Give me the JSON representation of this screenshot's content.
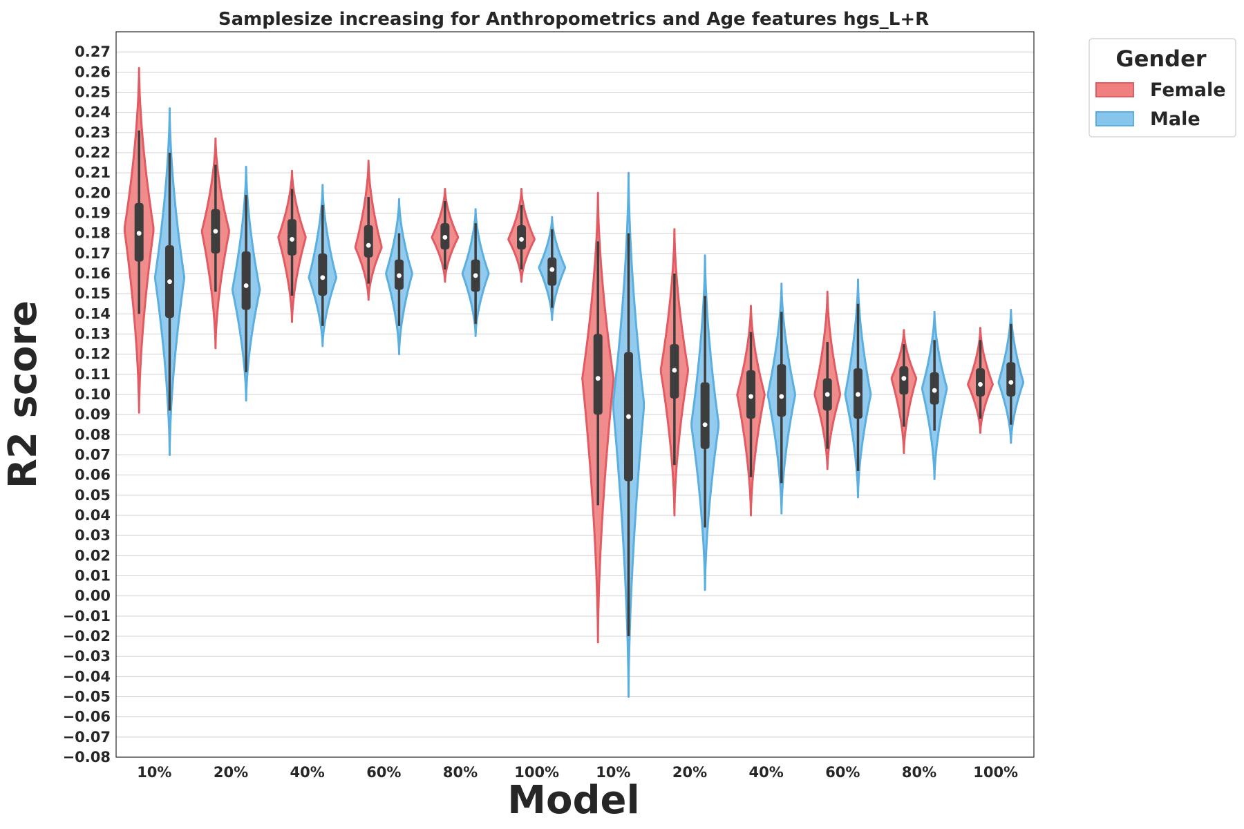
{
  "chart_data": {
    "type": "violin",
    "title": "Samplesize increasing for Anthropometrics and Age features hgs_L+R",
    "xlabel": "Model",
    "ylabel": "R2 score",
    "ylim": [
      -0.08,
      0.28
    ],
    "yticks": [
      -0.08,
      -0.07,
      -0.06,
      -0.05,
      -0.04,
      -0.03,
      -0.02,
      -0.01,
      0.0,
      0.01,
      0.02,
      0.03,
      0.04,
      0.05,
      0.06,
      0.07,
      0.08,
      0.09,
      0.1,
      0.11,
      0.12,
      0.13,
      0.14,
      0.15,
      0.16,
      0.17,
      0.18,
      0.19,
      0.2,
      0.21,
      0.22,
      0.23,
      0.24,
      0.25,
      0.26,
      0.27
    ],
    "ytick_labels": [
      "−0.08",
      "−0.07",
      "−0.06",
      "−0.05",
      "−0.04",
      "−0.03",
      "−0.02",
      "−0.01",
      "0.00",
      "0.01",
      "0.02",
      "0.03",
      "0.04",
      "0.05",
      "0.06",
      "0.07",
      "0.08",
      "0.09",
      "0.10",
      "0.11",
      "0.12",
      "0.13",
      "0.14",
      "0.15",
      "0.16",
      "0.17",
      "0.18",
      "0.19",
      "0.20",
      "0.21",
      "0.22",
      "0.23",
      "0.24",
      "0.25",
      "0.26",
      "0.27"
    ],
    "categories": [
      "10%",
      "20%",
      "40%",
      "60%",
      "80%",
      "100%",
      "10%",
      "20%",
      "40%",
      "60%",
      "80%",
      "100%"
    ],
    "grid": "horizontal",
    "legend": {
      "title": "Gender",
      "placement": "outside-top-right",
      "entries": [
        {
          "name": "Female",
          "color": "#f08080"
        },
        {
          "name": "Male",
          "color": "#87c5ec"
        }
      ]
    },
    "colors": {
      "female_fill": "#f08080",
      "female_edge": "#e25a62",
      "male_fill": "#87c5ec",
      "male_edge": "#5aaee0",
      "box": "#3d3d3d",
      "median_dot": "#ffffff",
      "grid": "#d0d0d0"
    },
    "series": [
      {
        "name": "Female",
        "violins": [
          {
            "min": 0.091,
            "max": 0.262,
            "q1": 0.166,
            "median": 0.18,
            "q3": 0.195,
            "whisker_low": 0.14,
            "whisker_high": 0.231,
            "peak": 0.182,
            "width": 0.8
          },
          {
            "min": 0.123,
            "max": 0.227,
            "q1": 0.17,
            "median": 0.181,
            "q3": 0.192,
            "whisker_low": 0.151,
            "whisker_high": 0.214,
            "peak": 0.181,
            "width": 0.75
          },
          {
            "min": 0.136,
            "max": 0.211,
            "q1": 0.169,
            "median": 0.177,
            "q3": 0.187,
            "whisker_low": 0.149,
            "whisker_high": 0.202,
            "peak": 0.178,
            "width": 0.75
          },
          {
            "min": 0.147,
            "max": 0.216,
            "q1": 0.168,
            "median": 0.174,
            "q3": 0.184,
            "whisker_low": 0.155,
            "whisker_high": 0.198,
            "peak": 0.173,
            "width": 0.72
          },
          {
            "min": 0.156,
            "max": 0.202,
            "q1": 0.172,
            "median": 0.178,
            "q3": 0.185,
            "whisker_low": 0.162,
            "whisker_high": 0.196,
            "peak": 0.178,
            "width": 0.72
          },
          {
            "min": 0.156,
            "max": 0.202,
            "q1": 0.172,
            "median": 0.177,
            "q3": 0.184,
            "whisker_low": 0.162,
            "whisker_high": 0.194,
            "peak": 0.177,
            "width": 0.72
          },
          {
            "min": -0.023,
            "max": 0.2,
            "q1": 0.09,
            "median": 0.108,
            "q3": 0.13,
            "whisker_low": 0.045,
            "whisker_high": 0.176,
            "peak": 0.108,
            "width": 0.85
          },
          {
            "min": 0.04,
            "max": 0.182,
            "q1": 0.098,
            "median": 0.112,
            "q3": 0.125,
            "whisker_low": 0.065,
            "whisker_high": 0.16,
            "peak": 0.112,
            "width": 0.75
          },
          {
            "min": 0.04,
            "max": 0.144,
            "q1": 0.088,
            "median": 0.099,
            "q3": 0.112,
            "whisker_low": 0.059,
            "whisker_high": 0.131,
            "peak": 0.1,
            "width": 0.75
          },
          {
            "min": 0.063,
            "max": 0.151,
            "q1": 0.092,
            "median": 0.1,
            "q3": 0.108,
            "whisker_low": 0.073,
            "whisker_high": 0.126,
            "peak": 0.1,
            "width": 0.7
          },
          {
            "min": 0.071,
            "max": 0.132,
            "q1": 0.1,
            "median": 0.108,
            "q3": 0.114,
            "whisker_low": 0.084,
            "whisker_high": 0.125,
            "peak": 0.108,
            "width": 0.68
          },
          {
            "min": 0.081,
            "max": 0.133,
            "q1": 0.099,
            "median": 0.105,
            "q3": 0.113,
            "whisker_low": 0.088,
            "whisker_high": 0.127,
            "peak": 0.105,
            "width": 0.68
          }
        ]
      },
      {
        "name": "Male",
        "violins": [
          {
            "min": 0.07,
            "max": 0.242,
            "q1": 0.138,
            "median": 0.156,
            "q3": 0.174,
            "whisker_low": 0.092,
            "whisker_high": 0.22,
            "peak": 0.158,
            "width": 0.8
          },
          {
            "min": 0.097,
            "max": 0.213,
            "q1": 0.142,
            "median": 0.154,
            "q3": 0.171,
            "whisker_low": 0.111,
            "whisker_high": 0.199,
            "peak": 0.152,
            "width": 0.75
          },
          {
            "min": 0.124,
            "max": 0.204,
            "q1": 0.149,
            "median": 0.158,
            "q3": 0.17,
            "whisker_low": 0.134,
            "whisker_high": 0.194,
            "peak": 0.158,
            "width": 0.75
          },
          {
            "min": 0.12,
            "max": 0.197,
            "q1": 0.152,
            "median": 0.159,
            "q3": 0.167,
            "whisker_low": 0.134,
            "whisker_high": 0.18,
            "peak": 0.16,
            "width": 0.72
          },
          {
            "min": 0.129,
            "max": 0.192,
            "q1": 0.151,
            "median": 0.159,
            "q3": 0.167,
            "whisker_low": 0.135,
            "whisker_high": 0.185,
            "peak": 0.16,
            "width": 0.72
          },
          {
            "min": 0.137,
            "max": 0.188,
            "q1": 0.154,
            "median": 0.162,
            "q3": 0.168,
            "whisker_low": 0.143,
            "whisker_high": 0.182,
            "peak": 0.163,
            "width": 0.72
          },
          {
            "min": -0.05,
            "max": 0.21,
            "q1": 0.057,
            "median": 0.089,
            "q3": 0.121,
            "whisker_low": -0.02,
            "whisker_high": 0.18,
            "peak": 0.095,
            "width": 0.85
          },
          {
            "min": 0.003,
            "max": 0.169,
            "q1": 0.073,
            "median": 0.085,
            "q3": 0.106,
            "whisker_low": 0.034,
            "whisker_high": 0.149,
            "peak": 0.085,
            "width": 0.75
          },
          {
            "min": 0.041,
            "max": 0.155,
            "q1": 0.089,
            "median": 0.099,
            "q3": 0.115,
            "whisker_low": 0.056,
            "whisker_high": 0.141,
            "peak": 0.1,
            "width": 0.75
          },
          {
            "min": 0.049,
            "max": 0.157,
            "q1": 0.088,
            "median": 0.1,
            "q3": 0.113,
            "whisker_low": 0.062,
            "whisker_high": 0.145,
            "peak": 0.1,
            "width": 0.7
          },
          {
            "min": 0.058,
            "max": 0.141,
            "q1": 0.095,
            "median": 0.102,
            "q3": 0.111,
            "whisker_low": 0.082,
            "whisker_high": 0.127,
            "peak": 0.103,
            "width": 0.68
          },
          {
            "min": 0.076,
            "max": 0.142,
            "q1": 0.099,
            "median": 0.106,
            "q3": 0.116,
            "whisker_low": 0.085,
            "whisker_high": 0.135,
            "peak": 0.106,
            "width": 0.68
          }
        ]
      }
    ]
  }
}
